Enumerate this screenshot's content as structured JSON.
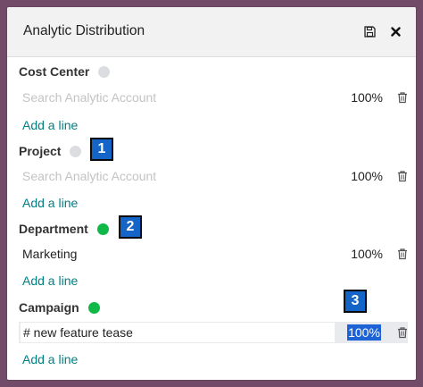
{
  "dialog": {
    "title": "Analytic Distribution",
    "save_icon": "floppy-disk-icon",
    "close_icon": "close-icon"
  },
  "groups": [
    {
      "label": "Cost Center",
      "status": "grey",
      "line": {
        "value": "",
        "placeholder": "Search Analytic Account",
        "percent": "100%"
      },
      "add_line": "Add a line"
    },
    {
      "label": "Project",
      "status": "grey",
      "line": {
        "value": "",
        "placeholder": "Search Analytic Account",
        "percent": "100%"
      },
      "add_line": "Add a line"
    },
    {
      "label": "Department",
      "status": "green",
      "line": {
        "value": "Marketing",
        "placeholder": "",
        "percent": "100%"
      },
      "add_line": "Add a line"
    },
    {
      "label": "Campaign",
      "status": "green",
      "line": {
        "value": "# new feature tease",
        "placeholder": "",
        "percent": "100%"
      },
      "add_line": "Add a line"
    }
  ],
  "markers": [
    "1",
    "2",
    "3"
  ],
  "colors": {
    "background": "#714b67",
    "header": "#f2f2f2",
    "link": "#017e84",
    "status_grey": "#dcdde0",
    "status_green": "#10b848",
    "selection": "#1d63d6",
    "marker": "#1565c8"
  }
}
